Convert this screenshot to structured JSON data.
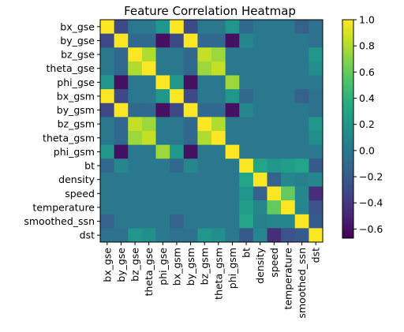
{
  "chart_data": {
    "type": "heatmap",
    "title": "Feature Correlation Heatmap",
    "xlabel": "",
    "ylabel": "",
    "colormap": "viridis",
    "labels": [
      "bx_gse",
      "by_gse",
      "bz_gse",
      "theta_gse",
      "phi_gse",
      "bx_gsm",
      "by_gsm",
      "bz_gsm",
      "theta_gsm",
      "phi_gsm",
      "bt",
      "density",
      "speed",
      "temperature",
      "smoothed_ssn",
      "dst"
    ],
    "values": [
      [
        1.0,
        -0.3,
        0.0,
        0.0,
        0.2,
        1.0,
        -0.3,
        0.0,
        0.0,
        0.2,
        -0.1,
        0.0,
        0.0,
        0.0,
        -0.15,
        -0.05
      ],
      [
        -0.3,
        1.0,
        -0.1,
        -0.1,
        -0.6,
        -0.3,
        1.0,
        -0.1,
        -0.1,
        -0.6,
        0.1,
        0.0,
        0.0,
        0.0,
        0.0,
        -0.05
      ],
      [
        0.0,
        -0.1,
        1.0,
        0.8,
        0.0,
        0.0,
        -0.1,
        0.85,
        0.75,
        0.0,
        0.0,
        0.0,
        0.0,
        0.0,
        0.0,
        0.2
      ],
      [
        0.0,
        -0.1,
        0.8,
        1.0,
        0.0,
        0.0,
        -0.1,
        0.75,
        0.85,
        0.0,
        0.0,
        0.0,
        0.0,
        0.0,
        0.0,
        0.15
      ],
      [
        0.2,
        -0.6,
        0.0,
        0.0,
        1.0,
        0.2,
        -0.6,
        0.0,
        0.0,
        0.75,
        0.0,
        0.0,
        0.0,
        0.0,
        0.0,
        0.0
      ],
      [
        1.0,
        -0.3,
        0.0,
        0.0,
        0.2,
        1.0,
        -0.3,
        0.0,
        0.0,
        0.2,
        -0.1,
        0.0,
        0.0,
        0.0,
        -0.15,
        -0.05
      ],
      [
        -0.3,
        1.0,
        -0.1,
        -0.1,
        -0.6,
        -0.3,
        1.0,
        -0.1,
        -0.1,
        -0.6,
        0.1,
        0.0,
        0.0,
        0.0,
        0.0,
        -0.05
      ],
      [
        0.0,
        -0.1,
        0.85,
        0.75,
        0.0,
        0.0,
        -0.1,
        1.0,
        0.8,
        0.0,
        0.0,
        0.0,
        0.0,
        0.0,
        0.0,
        0.2
      ],
      [
        0.0,
        -0.1,
        0.75,
        0.85,
        0.0,
        0.0,
        -0.1,
        0.8,
        1.0,
        0.0,
        0.0,
        0.0,
        0.0,
        0.0,
        0.0,
        0.15
      ],
      [
        0.2,
        -0.6,
        0.0,
        0.0,
        0.75,
        0.2,
        -0.6,
        0.0,
        0.0,
        1.0,
        0.0,
        0.0,
        0.0,
        0.0,
        0.0,
        0.0
      ],
      [
        -0.1,
        0.1,
        0.0,
        0.0,
        0.0,
        -0.1,
        0.1,
        0.0,
        0.0,
        0.0,
        1.0,
        0.3,
        0.2,
        0.25,
        0.3,
        -0.2
      ],
      [
        0.0,
        0.0,
        0.0,
        0.0,
        0.0,
        0.0,
        0.0,
        0.0,
        0.0,
        0.0,
        0.3,
        1.0,
        -0.15,
        0.1,
        0.05,
        0.1
      ],
      [
        0.0,
        0.0,
        0.0,
        0.0,
        0.0,
        0.0,
        0.0,
        0.0,
        0.0,
        0.0,
        0.2,
        -0.15,
        1.0,
        0.6,
        0.1,
        -0.45
      ],
      [
        0.0,
        0.0,
        0.0,
        0.0,
        0.0,
        0.0,
        0.0,
        0.0,
        0.0,
        0.0,
        0.25,
        0.1,
        0.6,
        1.0,
        0.1,
        -0.25
      ],
      [
        -0.15,
        0.0,
        0.0,
        0.0,
        0.0,
        -0.15,
        0.0,
        0.0,
        0.0,
        0.0,
        0.3,
        0.05,
        0.1,
        0.1,
        1.0,
        -0.2
      ],
      [
        -0.05,
        -0.05,
        0.2,
        0.15,
        0.0,
        -0.05,
        -0.05,
        0.2,
        0.15,
        0.0,
        -0.2,
        0.1,
        -0.45,
        -0.25,
        -0.2,
        1.0
      ]
    ],
    "vmin": -0.67,
    "vmax": 1.0,
    "colorbar_ticks": [
      "1.0",
      "0.8",
      "0.6",
      "0.4",
      "0.2",
      "0.0",
      "-0.2",
      "-0.4",
      "-0.6"
    ]
  }
}
